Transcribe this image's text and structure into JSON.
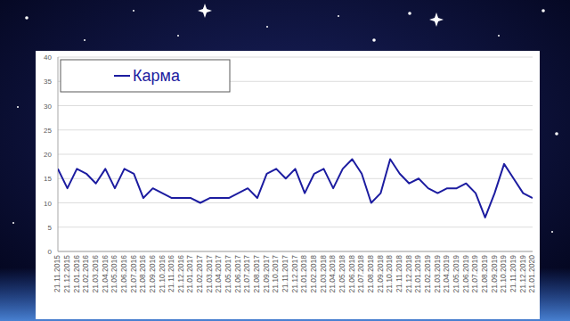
{
  "chart_data": {
    "type": "line",
    "categories": [
      "21.11.2015",
      "21.12.2015",
      "21.01.2016",
      "21.02.2016",
      "21.03.2016",
      "21.04.2016",
      "21.05.2016",
      "21.06.2016",
      "21.07.2016",
      "21.08.2016",
      "21.09.2016",
      "21.10.2016",
      "21.11.2016",
      "21.12.2016",
      "21.01.2017",
      "21.02.2017",
      "21.03.2017",
      "21.04.2017",
      "21.05.2017",
      "21.06.2017",
      "21.07.2017",
      "21.08.2017",
      "21.09.2017",
      "21.10.2017",
      "21.11.2017",
      "21.12.2017",
      "21.01.2018",
      "21.02.2018",
      "21.03.2018",
      "21.04.2018",
      "21.05.2018",
      "21.06.2018",
      "21.07.2018",
      "21.08.2018",
      "21.09.2018",
      "21.10.2018",
      "21.11.2018",
      "21.12.2018",
      "21.01.2019",
      "21.02.2019",
      "21.03.2019",
      "21.04.2019",
      "21.05.2019",
      "21.06.2019",
      "21.07.2019",
      "21.08.2019",
      "21.09.2019",
      "21.10.2019",
      "21.11.2019",
      "21.12.2019",
      "21.01.2020"
    ],
    "series": [
      {
        "name": "Карма",
        "color": "#1c1ca0",
        "values": [
          17,
          13,
          17,
          16,
          14,
          17,
          13,
          17,
          16,
          11,
          13,
          12,
          11,
          11,
          11,
          10,
          11,
          11,
          11,
          12,
          13,
          11,
          16,
          17,
          15,
          17,
          12,
          16,
          17,
          13,
          17,
          19,
          16,
          10,
          12,
          19,
          16,
          14,
          15,
          13,
          12,
          13,
          13,
          14,
          12,
          7,
          12,
          18,
          15,
          12,
          11
        ]
      }
    ],
    "ylim": [
      0,
      40
    ],
    "yticks": [
      0,
      5,
      10,
      15,
      20,
      25,
      30,
      35,
      40
    ],
    "grid": true,
    "legend": "top-left"
  }
}
